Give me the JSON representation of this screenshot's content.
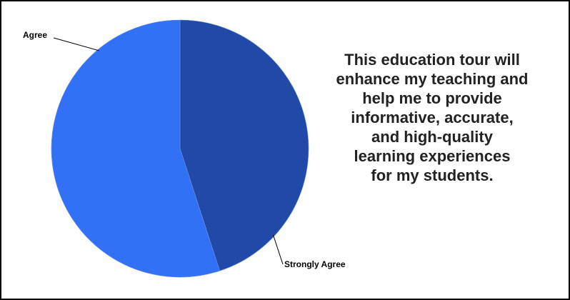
{
  "chart_data": {
    "type": "pie",
    "slices": [
      {
        "label": "Strongly Agree",
        "value": 45,
        "color": "#2049a8"
      },
      {
        "label": "Agree",
        "value": 55,
        "color": "#3270f5"
      }
    ],
    "legend": "none",
    "title": ""
  },
  "statement": {
    "lines": [
      "This education tour will",
      "enhance my teaching and",
      "help me to provide",
      "informative, accurate,",
      "and high-quality",
      "learning experiences",
      "for my students."
    ]
  }
}
